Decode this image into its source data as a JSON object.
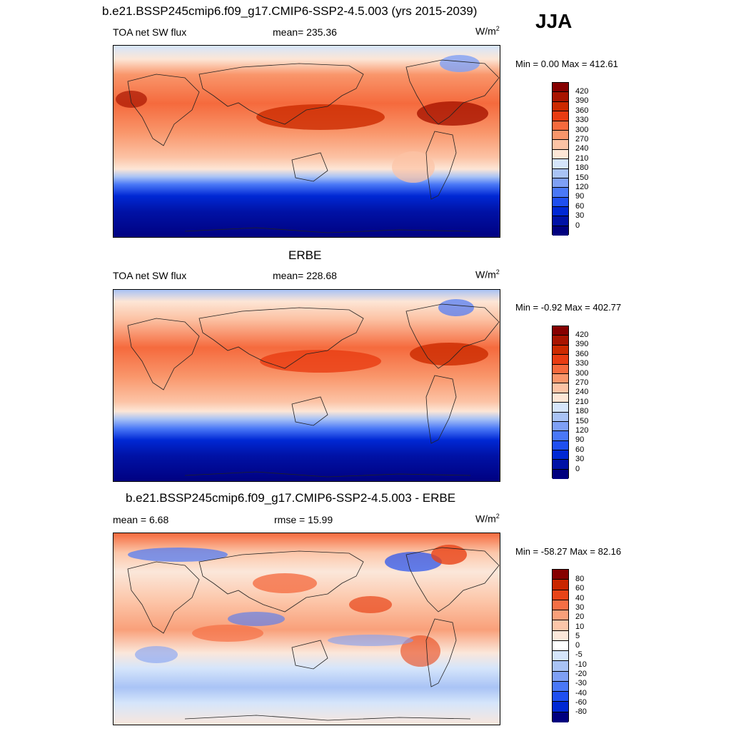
{
  "season": "JJA",
  "colors": {
    "full": [
      "#00007f",
      "#0012a6",
      "#0028d4",
      "#1f4ff0",
      "#4a78f7",
      "#7fa0f5",
      "#a9c3f5",
      "#d5e5fb",
      "#fde6d6",
      "#fcc3a5",
      "#f9966b",
      "#f56a3d",
      "#e83c12",
      "#cc2a00",
      "#a81400",
      "#860000"
    ],
    "diff": [
      "#00007f",
      "#0012a6",
      "#0028d4",
      "#1f4ff0",
      "#4a78f7",
      "#7fa0f5",
      "#a9c3f5",
      "#d5e5fb",
      "#fbe7da",
      "#fcc6a9",
      "#f9a07a",
      "#f56f45",
      "#e84418",
      "#c92600",
      "#860000"
    ]
  },
  "panels": [
    {
      "title": "b.e21.BSSP245cmip6.f09_g17.CMIP6-SSP2-4.5.003 (yrs 2015-2039)",
      "left_label": "TOA net SW flux",
      "center_label": "mean= 235.36",
      "units_base": "W/m",
      "units_exp": "2",
      "minmax": "Min =   0.00 Max = 412.61",
      "levels": [
        "420",
        "390",
        "360",
        "330",
        "300",
        "270",
        "240",
        "210",
        "180",
        "150",
        "120",
        "90",
        "60",
        "30",
        "0"
      ]
    },
    {
      "title": "ERBE",
      "left_label": "TOA net SW flux",
      "center_label": "mean= 228.68",
      "units_base": "W/m",
      "units_exp": "2",
      "minmax": "Min =  -0.92 Max = 402.77",
      "levels": [
        "420",
        "390",
        "360",
        "330",
        "300",
        "270",
        "240",
        "210",
        "180",
        "150",
        "120",
        "90",
        "60",
        "30",
        "0"
      ]
    },
    {
      "title": "b.e21.BSSP245cmip6.f09_g17.CMIP6-SSP2-4.5.003 - ERBE",
      "left_label": "mean =   6.68",
      "center_label": "rmse =  15.99",
      "units_base": "W/m",
      "units_exp": "2",
      "minmax": "Min = -58.27 Max =  82.16",
      "levels": [
        "80",
        "60",
        "40",
        "30",
        "20",
        "10",
        "5",
        "0",
        "-5",
        "-10",
        "-20",
        "-30",
        "-40",
        "-60",
        "-80"
      ]
    }
  ]
}
